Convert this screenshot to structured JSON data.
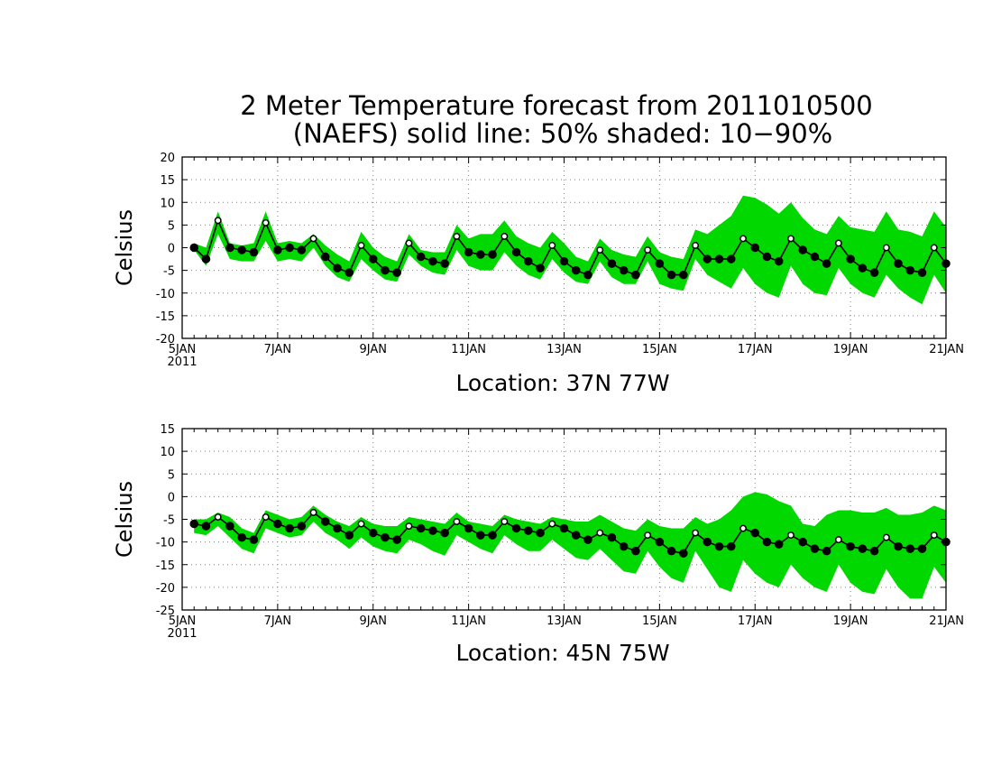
{
  "title": {
    "line1": "2 Meter Temperature forecast from 2011010500",
    "line2": "(NAEFS) solid line: 50% shaded: 10−90%"
  },
  "colors": {
    "band": "#00d800",
    "line": "#000000",
    "grid": "#808080"
  },
  "chart_data": [
    {
      "type": "area",
      "ylabel": "Celsius",
      "xlabel": "Location: 37N 77W",
      "xlim": [
        0,
        64
      ],
      "ylim": [
        -20,
        20
      ],
      "yticks": [
        20,
        15,
        10,
        5,
        0,
        -5,
        -10,
        -15,
        -20
      ],
      "xticks": [
        {
          "x": 0,
          "label": "5JAN",
          "sub": "2011"
        },
        {
          "x": 8,
          "label": "7JAN",
          "sub": ""
        },
        {
          "x": 16,
          "label": "9JAN",
          "sub": ""
        },
        {
          "x": 24,
          "label": "11JAN",
          "sub": ""
        },
        {
          "x": 32,
          "label": "13JAN",
          "sub": ""
        },
        {
          "x": 40,
          "label": "15JAN",
          "sub": ""
        },
        {
          "x": 48,
          "label": "17JAN",
          "sub": ""
        },
        {
          "x": 56,
          "label": "19JAN",
          "sub": ""
        },
        {
          "x": 64,
          "label": "21JAN",
          "sub": ""
        }
      ],
      "grid": true,
      "x": [
        1,
        2,
        3,
        4,
        5,
        6,
        7,
        8,
        9,
        10,
        11,
        12,
        13,
        14,
        15,
        16,
        17,
        18,
        19,
        20,
        21,
        22,
        23,
        24,
        25,
        26,
        27,
        28,
        29,
        30,
        31,
        32,
        33,
        34,
        35,
        36,
        37,
        38,
        39,
        40,
        41,
        42,
        43,
        44,
        45,
        46,
        47,
        48,
        49,
        50,
        51,
        52,
        53,
        54,
        55,
        56,
        57,
        58,
        59,
        60,
        61,
        62,
        63,
        64
      ],
      "series": [
        {
          "role": "median",
          "values": [
            0,
            -2.5,
            6,
            0,
            -0.5,
            -1,
            5.5,
            -0.5,
            0,
            -0.5,
            2,
            -2,
            -4.5,
            -5.5,
            0.5,
            -2.5,
            -5,
            -5.5,
            1,
            -2,
            -3,
            -3.5,
            2.5,
            -1,
            -1.5,
            -1.5,
            2.5,
            -1,
            -3,
            -4.5,
            0.5,
            -3,
            -5,
            -6,
            -0.5,
            -3.5,
            -5,
            -6,
            -0.5,
            -3.5,
            -6,
            -6,
            0.5,
            -2.5,
            -2.5,
            -2.5,
            2,
            0,
            -2,
            -3,
            2,
            -0.5,
            -2,
            -3.5,
            1,
            -2.5,
            -4.5,
            -5.5,
            0,
            -3.5,
            -5,
            -5.5,
            0,
            -3.5
          ]
        },
        {
          "role": "p10",
          "values": [
            -0.5,
            -4,
            3,
            -2.5,
            -3,
            -3,
            1.5,
            -3,
            -2.5,
            -3,
            0,
            -4,
            -6.5,
            -7.5,
            -2.5,
            -5,
            -7,
            -7.5,
            -1.5,
            -4,
            -5.5,
            -6,
            -0.5,
            -4,
            -5,
            -5,
            -1,
            -4,
            -6,
            -7,
            -2.5,
            -5.5,
            -7.5,
            -8,
            -3,
            -6.5,
            -8,
            -8,
            -3,
            -8,
            -9,
            -9.5,
            -2.5,
            -6,
            -7.5,
            -9,
            -4.5,
            -8,
            -10,
            -11,
            -4,
            -8,
            -10,
            -10.5,
            -4.5,
            -8,
            -10,
            -11,
            -6,
            -9,
            -11,
            -12.5,
            -6,
            -10
          ]
        },
        {
          "role": "p90",
          "values": [
            1,
            0,
            8,
            1,
            0.5,
            1,
            8,
            1,
            1.5,
            1,
            3,
            0.5,
            -1.5,
            -3,
            3.5,
            0,
            -2,
            -3,
            3,
            -0.5,
            -1,
            -1,
            5,
            2,
            3,
            3,
            6,
            2.5,
            1,
            0,
            3.5,
            1,
            -2,
            -3,
            2,
            -0.5,
            -1.5,
            -2,
            2.5,
            -1,
            -2,
            -2.5,
            4,
            3,
            5,
            7,
            11.5,
            11,
            9.5,
            7.5,
            10,
            6.5,
            4,
            3,
            7,
            4.5,
            4,
            3.5,
            8,
            4,
            3.5,
            2.5,
            8,
            4.5
          ]
        }
      ]
    },
    {
      "type": "area",
      "ylabel": "Celsius",
      "xlabel": "Location: 45N 75W",
      "xlim": [
        0,
        64
      ],
      "ylim": [
        -25,
        15
      ],
      "yticks": [
        15,
        10,
        5,
        0,
        -5,
        -10,
        -15,
        -20,
        -25
      ],
      "xticks": [
        {
          "x": 0,
          "label": "5JAN",
          "sub": "2011"
        },
        {
          "x": 8,
          "label": "7JAN",
          "sub": ""
        },
        {
          "x": 16,
          "label": "9JAN",
          "sub": ""
        },
        {
          "x": 24,
          "label": "11JAN",
          "sub": ""
        },
        {
          "x": 32,
          "label": "13JAN",
          "sub": ""
        },
        {
          "x": 40,
          "label": "15JAN",
          "sub": ""
        },
        {
          "x": 48,
          "label": "17JAN",
          "sub": ""
        },
        {
          "x": 56,
          "label": "19JAN",
          "sub": ""
        },
        {
          "x": 64,
          "label": "21JAN",
          "sub": ""
        }
      ],
      "grid": true,
      "x": [
        1,
        2,
        3,
        4,
        5,
        6,
        7,
        8,
        9,
        10,
        11,
        12,
        13,
        14,
        15,
        16,
        17,
        18,
        19,
        20,
        21,
        22,
        23,
        24,
        25,
        26,
        27,
        28,
        29,
        30,
        31,
        32,
        33,
        34,
        35,
        36,
        37,
        38,
        39,
        40,
        41,
        42,
        43,
        44,
        45,
        46,
        47,
        48,
        49,
        50,
        51,
        52,
        53,
        54,
        55,
        56,
        57,
        58,
        59,
        60,
        61,
        62,
        63,
        64
      ],
      "series": [
        {
          "role": "median",
          "values": [
            -6,
            -6.5,
            -4.5,
            -6.5,
            -9,
            -9.5,
            -4.5,
            -6,
            -7,
            -6.5,
            -3.5,
            -5.5,
            -7,
            -8.5,
            -6,
            -8,
            -9,
            -9.5,
            -6.5,
            -7,
            -7.5,
            -8,
            -5.5,
            -7,
            -8.5,
            -8.5,
            -5.5,
            -7,
            -7.5,
            -8,
            -6,
            -7,
            -8.5,
            -9.5,
            -8,
            -9,
            -11,
            -12,
            -8.5,
            -10,
            -12,
            -12.5,
            -8,
            -10,
            -11,
            -11,
            -7,
            -8,
            -10,
            -10.5,
            -8.5,
            -10,
            -11.5,
            -12,
            -9.5,
            -11,
            -11.5,
            -12,
            -9,
            -11,
            -11.5,
            -11.5,
            -8.5,
            -10
          ]
        },
        {
          "role": "p10",
          "values": [
            -8,
            -8.5,
            -6.5,
            -9,
            -11.5,
            -12.5,
            -7,
            -8,
            -9,
            -8.5,
            -5.5,
            -8,
            -9.5,
            -11.5,
            -9,
            -11,
            -12,
            -12.5,
            -9.5,
            -10.5,
            -12,
            -13,
            -8.5,
            -10,
            -11.5,
            -12.5,
            -8.5,
            -10.5,
            -12,
            -12,
            -9.5,
            -11.5,
            -13.5,
            -14,
            -11.5,
            -14,
            -16.5,
            -17,
            -12,
            -15.5,
            -18,
            -19,
            -12,
            -16,
            -20,
            -21,
            -14,
            -17,
            -19,
            -20,
            -15,
            -18,
            -20,
            -21,
            -15,
            -19,
            -21,
            -21.5,
            -16,
            -20,
            -22.5,
            -22.5,
            -15.5,
            -19
          ]
        },
        {
          "role": "p90",
          "values": [
            -5,
            -5,
            -3.5,
            -4.5,
            -7,
            -8,
            -3,
            -4,
            -5,
            -4.5,
            -2,
            -4,
            -5.5,
            -6.5,
            -4.5,
            -6,
            -6.5,
            -6.5,
            -4.5,
            -5,
            -5.5,
            -6,
            -3.5,
            -5.5,
            -6,
            -6.5,
            -4,
            -5,
            -5.5,
            -6,
            -4.5,
            -5,
            -5.5,
            -5.5,
            -4,
            -5.5,
            -7,
            -7.5,
            -5,
            -6.5,
            -7,
            -7,
            -4.5,
            -6,
            -5,
            -3,
            0,
            1,
            0.5,
            -1,
            -2,
            -6,
            -6.5,
            -4,
            -3,
            -3,
            -3.5,
            -3.5,
            -2.5,
            -4,
            -4,
            -3.5,
            -2,
            -3
          ]
        }
      ]
    }
  ]
}
